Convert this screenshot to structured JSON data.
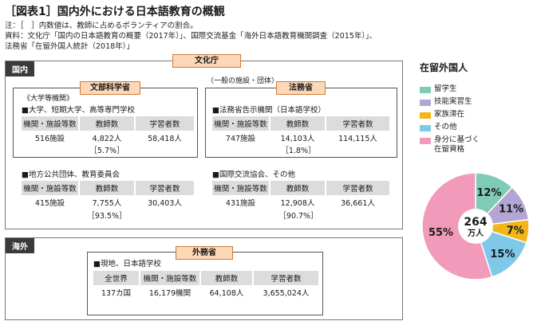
{
  "title": "［図表1］国内外における日本語教育の概観",
  "notes": [
    "注：［　］内数値は、教師に占めるボランティアの割合。",
    "資料：文化庁「国内の日本語教育の概要（2017年）」、国際交流基金「海外日本語教育機関調査（2015年）」、",
    "法務省「在留外国人統計（2018年）」"
  ],
  "domestic": {
    "label": "国内",
    "agency_tag": "文化庁",
    "general_note": "（一般の施設・団体）",
    "mext": {
      "tag": "文部科学省",
      "side_note": "《大学等機関》",
      "title": "■大学、短期大学、高等専門学校",
      "headers": [
        "機関・施設等数",
        "教師数",
        "学習者数"
      ],
      "values": [
        "516施設",
        "4,822人",
        "58,418人"
      ],
      "share": "［5.7%］"
    },
    "moj": {
      "tag": "法務省",
      "title": "■法務省告示機関（日本語学校）",
      "headers": [
        "機関・施設等数",
        "教師数",
        "学習者数"
      ],
      "values": [
        "747施設",
        "14,103人",
        "114,115人"
      ],
      "share": "［1.8%］"
    },
    "local": {
      "title": "■地方公共団体、教育委員会",
      "headers": [
        "機関・施設等数",
        "教師数",
        "学習者数"
      ],
      "values": [
        "415施設",
        "7,755人",
        "30,403人"
      ],
      "share": "［93.5%］"
    },
    "intl": {
      "title": "■国際交流協会、その他",
      "headers": [
        "機関・施設等数",
        "教師数",
        "学習者数"
      ],
      "values": [
        "431施設",
        "12,908人",
        "36,661人"
      ],
      "share": "［90.7%］"
    }
  },
  "overseas": {
    "label": "海外",
    "agency_tag": "外務省",
    "title": "■現地、日本語学校",
    "headers": [
      "全世界",
      "機関・施設等数",
      "教師数",
      "学習者数"
    ],
    "values": [
      "137カ国",
      "16,179機関",
      "64,108人",
      "3,655,024人"
    ]
  },
  "chart_data": {
    "type": "pie",
    "title": "在留外国人",
    "center_label": [
      "264",
      "万人"
    ],
    "slices": [
      {
        "name": "留学生",
        "value": 12,
        "label": "12%",
        "color": "#7fcbb5"
      },
      {
        "name": "技能実習生",
        "value": 11,
        "label": "11%",
        "color": "#b3a6d4"
      },
      {
        "name": "家族滞在",
        "value": 7,
        "label": "7%",
        "color": "#f2b51a"
      },
      {
        "name": "その他",
        "value": 15,
        "label": "15%",
        "color": "#7ec9ea"
      },
      {
        "name": "身分に基づく在留資格",
        "value": 55,
        "label": "55%",
        "color": "#f29ab9"
      }
    ],
    "legend": [
      "留学生",
      "技能実習生",
      "家族滞在",
      "その他",
      "身分に基づく",
      "在留資格"
    ]
  }
}
